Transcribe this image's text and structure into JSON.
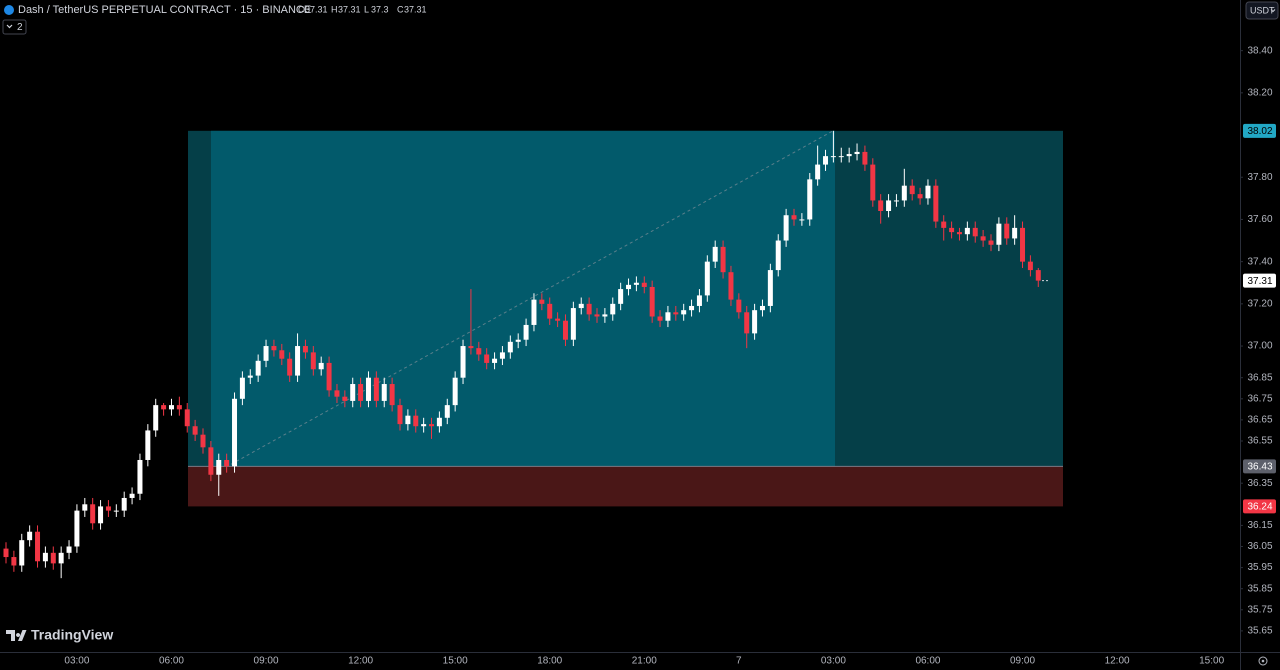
{
  "header": {
    "title": "Dash / TetherUS PERPETUAL CONTRACT · 15 · BINANCE",
    "ohlc_legend": [
      {
        "name": "O",
        "value": 37.31
      },
      {
        "name": "H",
        "value": 37.31
      },
      {
        "name": "L",
        "value": 37.3
      },
      {
        "name": "C",
        "value": 37.31
      }
    ],
    "indicator_count": 2,
    "currency": "USDT",
    "brand": "TradingView"
  },
  "chart_data": {
    "type": "candlestick",
    "categories": [
      null,
      null,
      null,
      null,
      null,
      null,
      null,
      null,
      null,
      "03:00",
      null,
      null,
      null,
      null,
      null,
      null,
      null,
      null,
      null,
      null,
      null,
      "06:00",
      null,
      null,
      null,
      null,
      null,
      null,
      null,
      null,
      null,
      null,
      null,
      "09:00",
      null,
      null,
      null,
      null,
      null,
      null,
      null,
      null,
      null,
      null,
      null,
      "12:00",
      null,
      null,
      null,
      null,
      null,
      null,
      null,
      null,
      null,
      null,
      null,
      "15:00",
      null,
      null,
      null,
      null,
      null,
      null,
      null,
      null,
      null,
      null,
      null,
      "18:00",
      null,
      null,
      null,
      null,
      null,
      null,
      null,
      null,
      null,
      null,
      null,
      "21:00",
      null,
      null,
      null,
      null,
      null,
      null,
      null,
      null,
      null,
      null,
      null,
      "7",
      null,
      null,
      null,
      null,
      null,
      null,
      null,
      null,
      null,
      null,
      null,
      "03:00",
      null,
      null,
      null,
      null,
      null,
      null,
      null,
      null,
      null,
      null,
      null,
      "06:00",
      null,
      null,
      null,
      null,
      null,
      null,
      null,
      null,
      null,
      null,
      null,
      "09:00",
      null,
      null,
      null,
      null,
      null,
      null,
      null,
      null,
      null,
      null,
      null,
      "12:00",
      null,
      null,
      null,
      null,
      null,
      null,
      null,
      null,
      null,
      null,
      null,
      "15:00",
      null,
      null,
      null
    ],
    "open": [
      36.04,
      36.0,
      35.96,
      36.08,
      36.12,
      35.98,
      36.02,
      35.97,
      36.02,
      36.05,
      36.22,
      36.25,
      36.16,
      36.24,
      36.22,
      36.22,
      36.28,
      36.3,
      36.46,
      36.6,
      36.72,
      36.7,
      36.72,
      36.7,
      36.62,
      36.58,
      36.52,
      36.39,
      36.46,
      36.43,
      36.75,
      36.85,
      36.86,
      36.93,
      37.0,
      36.98,
      36.94,
      36.86,
      37.0,
      36.97,
      36.89,
      36.92,
      36.79,
      36.76,
      36.74,
      36.82,
      36.74,
      36.85,
      36.74,
      36.82,
      36.72,
      36.63,
      36.67,
      36.62,
      36.63,
      36.62,
      36.66,
      36.72,
      36.85,
      37.0,
      36.99,
      36.96,
      36.92,
      36.94,
      36.97,
      37.02,
      37.03,
      37.1,
      37.22,
      37.2,
      37.13,
      37.12,
      37.03,
      37.18,
      37.2,
      37.15,
      37.14,
      37.15,
      37.2,
      37.27,
      37.29,
      37.3,
      37.28,
      37.14,
      37.12,
      37.16,
      37.15,
      37.17,
      37.19,
      37.24,
      37.4,
      37.47,
      37.35,
      37.22,
      37.16,
      37.06,
      37.17,
      37.19,
      37.36,
      37.5,
      37.62,
      37.6,
      37.6,
      37.79,
      37.86,
      37.9,
      37.9,
      37.9,
      37.91,
      37.92,
      37.86,
      37.69,
      37.64,
      37.69,
      37.69,
      37.76,
      37.72,
      37.7,
      37.76,
      37.59,
      37.56,
      37.54,
      37.53,
      37.56,
      37.52,
      37.5,
      37.48,
      37.58,
      37.51,
      37.56,
      37.4,
      37.36,
      null,
      null,
      null,
      null,
      null,
      null,
      null,
      null,
      null,
      null,
      null,
      null,
      null,
      null,
      null,
      null,
      null,
      null,
      null,
      null,
      null,
      null,
      null,
      null,
      null
    ],
    "high": [
      36.07,
      36.03,
      36.11,
      36.15,
      36.15,
      36.05,
      36.05,
      36.05,
      36.08,
      36.25,
      36.28,
      36.28,
      36.27,
      36.27,
      36.25,
      36.31,
      36.33,
      36.49,
      36.63,
      36.75,
      36.73,
      36.75,
      36.76,
      36.73,
      36.65,
      36.61,
      36.55,
      36.49,
      36.49,
      36.78,
      36.88,
      36.89,
      36.96,
      37.03,
      37.03,
      37.01,
      36.97,
      37.06,
      37.03,
      37.0,
      36.95,
      36.95,
      36.82,
      36.79,
      36.85,
      36.85,
      36.88,
      36.88,
      36.85,
      36.85,
      36.75,
      36.7,
      36.7,
      36.66,
      36.66,
      36.69,
      36.75,
      36.88,
      37.03,
      37.27,
      37.02,
      36.99,
      36.97,
      37.0,
      37.05,
      37.06,
      37.13,
      37.25,
      37.25,
      37.23,
      37.16,
      37.15,
      37.21,
      37.23,
      37.23,
      37.18,
      37.18,
      37.23,
      37.3,
      37.32,
      37.33,
      37.33,
      37.31,
      37.17,
      37.19,
      37.19,
      37.2,
      37.22,
      37.27,
      37.43,
      37.5,
      37.5,
      37.38,
      37.25,
      37.19,
      37.2,
      37.22,
      37.39,
      37.53,
      37.65,
      37.65,
      37.63,
      37.82,
      37.95,
      37.93,
      38.02,
      37.94,
      37.94,
      37.96,
      37.95,
      37.89,
      37.72,
      37.72,
      37.72,
      37.84,
      37.79,
      37.75,
      37.79,
      37.79,
      37.62,
      37.59,
      37.56,
      37.59,
      37.59,
      37.55,
      37.53,
      37.61,
      37.61,
      37.62,
      37.59,
      37.43,
      37.37,
      null,
      null,
      null,
      null,
      null,
      null,
      null,
      null,
      null,
      null,
      null,
      null,
      null,
      null,
      null,
      null,
      null,
      null,
      null,
      null,
      null,
      null,
      null,
      null,
      null
    ],
    "low": [
      35.97,
      35.93,
      35.93,
      36.05,
      35.95,
      35.95,
      35.94,
      35.9,
      35.99,
      36.02,
      36.19,
      36.13,
      36.13,
      36.19,
      36.19,
      36.19,
      36.25,
      36.27,
      36.43,
      36.57,
      36.67,
      36.67,
      36.67,
      36.59,
      36.55,
      36.49,
      36.36,
      36.29,
      36.4,
      36.4,
      36.72,
      36.82,
      36.83,
      36.9,
      36.95,
      36.91,
      36.83,
      36.83,
      36.94,
      36.86,
      36.86,
      36.76,
      36.73,
      36.71,
      36.71,
      36.71,
      36.71,
      36.71,
      36.71,
      36.69,
      36.6,
      36.6,
      36.59,
      36.59,
      36.56,
      36.59,
      36.63,
      36.69,
      36.82,
      36.96,
      36.93,
      36.89,
      36.89,
      36.91,
      36.94,
      36.99,
      37.0,
      37.07,
      37.17,
      37.1,
      37.09,
      37.0,
      37.0,
      37.15,
      37.12,
      37.11,
      37.11,
      37.12,
      37.17,
      37.24,
      37.26,
      37.25,
      37.11,
      37.09,
      37.09,
      37.12,
      37.12,
      37.14,
      37.16,
      37.21,
      37.37,
      37.32,
      37.19,
      37.13,
      36.99,
      37.03,
      37.14,
      37.16,
      37.33,
      37.47,
      37.57,
      37.57,
      37.57,
      37.76,
      37.83,
      37.87,
      37.87,
      37.87,
      37.88,
      37.83,
      37.66,
      37.58,
      37.61,
      37.66,
      37.66,
      37.69,
      37.67,
      37.67,
      37.56,
      37.5,
      37.51,
      37.5,
      37.5,
      37.49,
      37.47,
      37.45,
      37.45,
      37.48,
      37.48,
      37.37,
      37.33,
      37.28,
      null,
      null,
      null,
      null,
      null,
      null,
      null,
      null,
      null,
      null,
      null,
      null,
      null,
      null,
      null,
      null,
      null,
      null,
      null,
      null,
      null,
      null,
      null,
      null,
      null
    ],
    "close": [
      36.0,
      35.96,
      36.08,
      36.12,
      35.98,
      36.02,
      35.97,
      36.02,
      36.05,
      36.22,
      36.25,
      36.16,
      36.24,
      36.22,
      36.22,
      36.28,
      36.3,
      36.46,
      36.6,
      36.72,
      36.7,
      36.72,
      36.7,
      36.62,
      36.58,
      36.52,
      36.39,
      36.46,
      36.43,
      36.75,
      36.85,
      36.86,
      36.93,
      37.0,
      36.98,
      36.94,
      36.86,
      37.0,
      36.97,
      36.89,
      36.92,
      36.79,
      36.76,
      36.74,
      36.82,
      36.74,
      36.85,
      36.74,
      36.82,
      36.72,
      36.63,
      36.67,
      36.62,
      36.63,
      36.62,
      36.66,
      36.72,
      36.85,
      37.0,
      36.99,
      36.96,
      36.92,
      36.94,
      36.97,
      37.02,
      37.03,
      37.1,
      37.22,
      37.2,
      37.13,
      37.12,
      37.03,
      37.18,
      37.2,
      37.15,
      37.14,
      37.15,
      37.2,
      37.27,
      37.29,
      37.3,
      37.28,
      37.14,
      37.12,
      37.16,
      37.15,
      37.17,
      37.19,
      37.24,
      37.4,
      37.47,
      37.35,
      37.22,
      37.16,
      37.06,
      37.17,
      37.19,
      37.36,
      37.5,
      37.62,
      37.6,
      37.6,
      37.79,
      37.86,
      37.9,
      37.9,
      37.9,
      37.91,
      37.92,
      37.86,
      37.69,
      37.64,
      37.69,
      37.69,
      37.76,
      37.72,
      37.7,
      37.76,
      37.59,
      37.56,
      37.54,
      37.53,
      37.56,
      37.52,
      37.5,
      37.48,
      37.58,
      37.51,
      37.56,
      37.4,
      37.36,
      37.31,
      null,
      null,
      null,
      null,
      null,
      null,
      null,
      null,
      null,
      null,
      null,
      null,
      null,
      null,
      null,
      null,
      null,
      null,
      null,
      null,
      null,
      null,
      null,
      null,
      null
    ],
    "up_color": "#ffffff",
    "down_color": "#f23645",
    "ylim": [
      35.55,
      38.64
    ],
    "yticks": [
      {
        "value": 38.4,
        "label": "38.40"
      },
      {
        "value": 38.2,
        "label": "38.20"
      },
      {
        "value": 37.8,
        "label": "37.80"
      },
      {
        "value": 37.6,
        "label": "37.60"
      },
      {
        "value": 37.4,
        "label": "37.40"
      },
      {
        "value": 37.2,
        "label": "37.20"
      },
      {
        "value": 37,
        "label": "37.00"
      },
      36.85,
      36.75,
      36.65,
      36.55,
      36.35,
      36.15,
      36.05,
      35.95,
      35.85,
      35.75,
      35.65
    ],
    "grid": false,
    "position": {
      "target": 38.02,
      "entry": 36.43,
      "stop": 36.24
    },
    "last_price": 37.31
  }
}
